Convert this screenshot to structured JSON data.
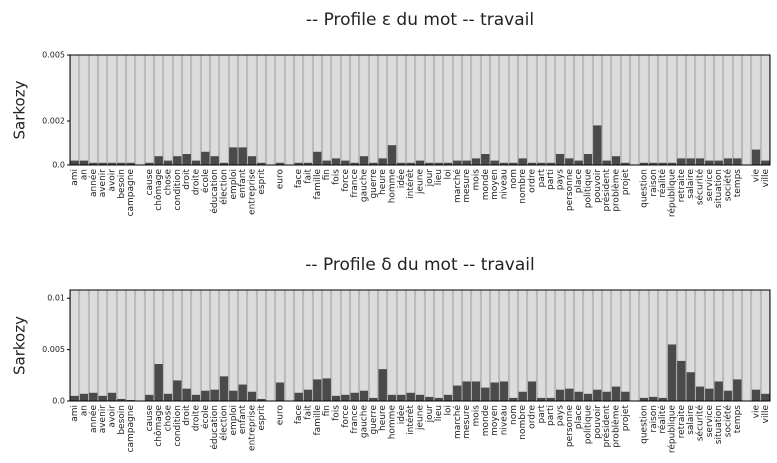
{
  "chart_data": [
    {
      "type": "bar",
      "title": "-- Profile ε du mot -- travail",
      "y_label": "Sarkozy",
      "categories": [
        "ami",
        "an",
        "année",
        "avenir",
        "avoir",
        "besoin",
        "campagne",
        null,
        "cause",
        "chômage",
        "chose",
        "condition",
        "droit",
        "droite",
        "école",
        "éducation",
        "élection",
        "emploi",
        "enfant",
        "entreprise",
        "esprit",
        null,
        "euro",
        null,
        "face",
        "fait",
        "famille",
        "fin",
        "fois",
        "force",
        "france",
        "gauche",
        "guerre",
        "heure",
        "homme",
        "idée",
        "intérêt",
        "jeune",
        "jour",
        "lieu",
        "loi",
        "marché",
        "mesure",
        "mois",
        "monde",
        "moyen",
        "niveau",
        "nom",
        "nombre",
        "ordre",
        "part",
        "parti",
        "pays",
        "personne",
        "place",
        "politique",
        "pouvoir",
        "président",
        "problème",
        "projet",
        null,
        "question",
        "raison",
        "réalité",
        "république",
        "retraite",
        "salaire",
        "sécurité",
        "service",
        "situation",
        "société",
        "temps",
        null,
        "vie",
        "ville"
      ],
      "values": [
        0.0002,
        0.0002,
        0.0001,
        0.0001,
        0.0001,
        0.0001,
        0.0001,
        0,
        0.0001,
        0.0004,
        0.0002,
        0.0004,
        0.0005,
        0.0002,
        0.0006,
        0.0004,
        0.0001,
        0.0008,
        0.0008,
        0.0004,
        0.0001,
        0,
        0.0001,
        0,
        0.0001,
        0.0001,
        0.0006,
        0.0002,
        0.0003,
        0.0002,
        0.0001,
        0.0004,
        0.0001,
        0.0003,
        0.0009,
        0.0001,
        0.0001,
        0.0002,
        0.0001,
        0.0001,
        0.0001,
        0.0002,
        0.0002,
        0.0003,
        0.0005,
        0.0002,
        0.0001,
        0.0001,
        0.0003,
        0.0001,
        0.0001,
        0.0001,
        0.0005,
        0.0003,
        0.0002,
        0.0005,
        0.0018,
        0.0002,
        0.0004,
        0.0001,
        0,
        0.0001,
        0.0001,
        0.0001,
        0.0001,
        0.0003,
        0.0003,
        0.0003,
        0.0002,
        0.0002,
        0.0003,
        0.0003,
        0,
        0.0007,
        0.0002
      ],
      "color": "#4a4a4a",
      "background_color": "#dcdcdc",
      "ylim": [
        0,
        0.005
      ],
      "yticks": [
        {
          "value": 0,
          "label": "0.0"
        },
        0.002,
        0.005
      ]
    },
    {
      "type": "bar",
      "title": "-- Profile δ du mot -- travail",
      "y_label": "Sarkozy",
      "categories": [
        "ami",
        "an",
        "année",
        "avenir",
        "avoir",
        "besoin",
        "campagne",
        null,
        "cause",
        "chômage",
        "chose",
        "condition",
        "droit",
        "droite",
        "école",
        "éducation",
        "élection",
        "emploi",
        "enfant",
        "entreprise",
        "esprit",
        null,
        "euro",
        null,
        "face",
        "fait",
        "famille",
        "fin",
        "fois",
        "force",
        "france",
        "gauche",
        "guerre",
        "heure",
        "homme",
        "idée",
        "intérêt",
        "jeune",
        "jour",
        "lieu",
        "loi",
        "marché",
        "mesure",
        "mois",
        "monde",
        "moyen",
        "niveau",
        "nom",
        "nombre",
        "ordre",
        "part",
        "parti",
        "pays",
        "personne",
        "place",
        "politique",
        "pouvoir",
        "président",
        "problème",
        "projet",
        null,
        "question",
        "raison",
        "réalité",
        "république",
        "retraite",
        "salaire",
        "sécurité",
        "service",
        "situation",
        "société",
        "temps",
        null,
        "vie",
        "ville"
      ],
      "values": [
        0.0005,
        0.0007,
        0.0008,
        0.0005,
        0.0008,
        0.0002,
        0.0001,
        0,
        0.0006,
        0.0036,
        0.0007,
        0.002,
        0.0012,
        0.0006,
        0.001,
        0.0011,
        0.0024,
        0.001,
        0.0016,
        0.0009,
        0.0002,
        0,
        0.0018,
        0,
        0.0008,
        0.0011,
        0.0021,
        0.0022,
        0.0005,
        0.0006,
        0.0008,
        0.001,
        0.0003,
        0.0031,
        0.0006,
        0.0006,
        0.0008,
        0.0006,
        0.0004,
        0.0003,
        0.0006,
        0.0015,
        0.0019,
        0.0019,
        0.0013,
        0.0018,
        0.0019,
        0.0003,
        0.0009,
        0.0019,
        0.0003,
        0.0003,
        0.0011,
        0.0012,
        0.0009,
        0.0007,
        0.0011,
        0.0009,
        0.0014,
        0.0009,
        0,
        0.0003,
        0.0004,
        0.0003,
        0.0055,
        0.0039,
        0.0028,
        0.0014,
        0.0012,
        0.0019,
        0.001,
        0.0021,
        0,
        0.0011,
        0.0007
      ],
      "color": "#4a4a4a",
      "background_color": "#dcdcdc",
      "ylim": [
        0,
        0.0108
      ],
      "yticks": [
        {
          "value": 0,
          "label": "0.0"
        },
        0.005,
        0.01
      ]
    }
  ]
}
